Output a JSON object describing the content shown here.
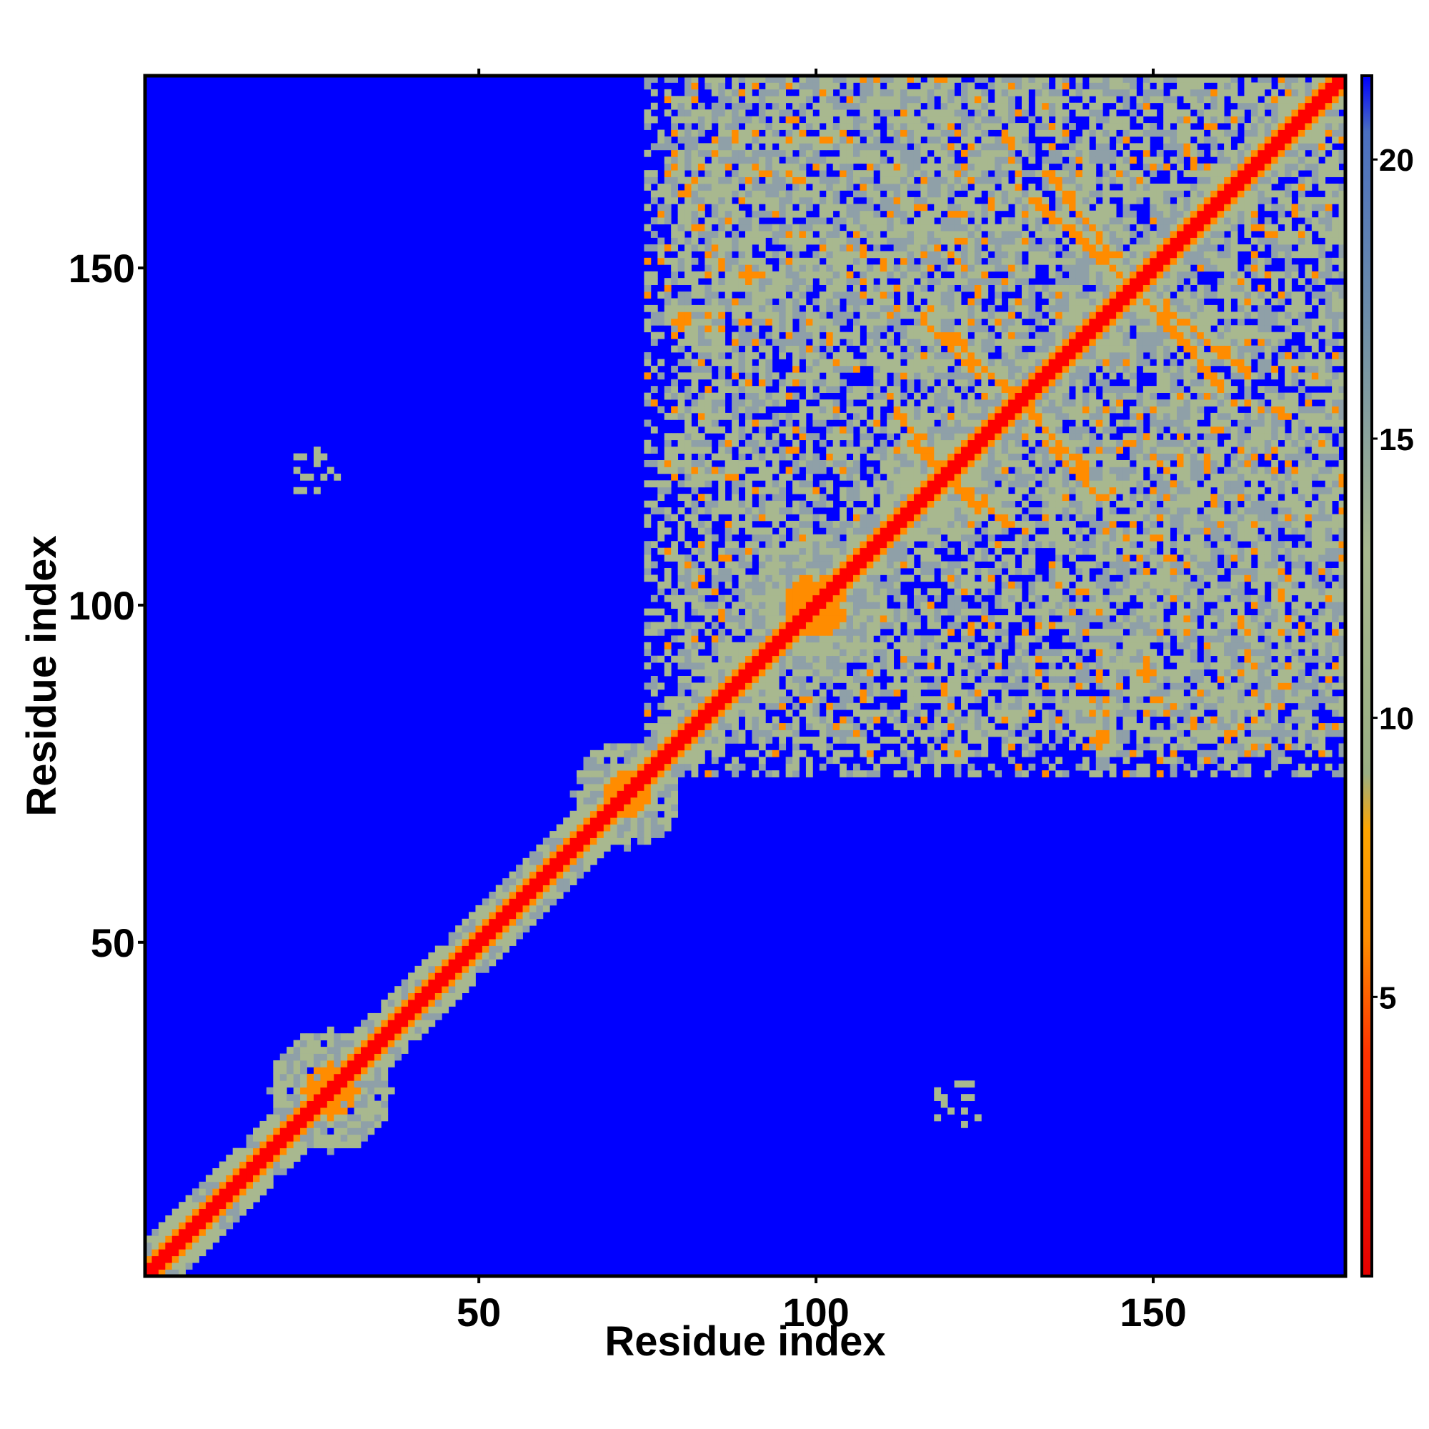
{
  "chart_data": {
    "type": "heatmap",
    "title": "",
    "xlabel": "Residue index",
    "ylabel": "Residue index",
    "xlim": [
      1,
      178
    ],
    "ylim": [
      1,
      178
    ],
    "x_ticks": [
      50,
      100,
      150
    ],
    "y_ticks": [
      50,
      100,
      150
    ],
    "x_tick_labels": [
      "50",
      "100",
      "150"
    ],
    "y_tick_labels": [
      "50",
      "100",
      "150"
    ],
    "grid": false,
    "legend": "colorbar-right",
    "colorbar": {
      "min": 0,
      "max": 21.5,
      "ticks": [
        5,
        10,
        15,
        20
      ],
      "tick_labels": [
        "5",
        "10",
        "15",
        "20"
      ],
      "stops": [
        {
          "value": 0,
          "color": "#e60000"
        },
        {
          "value": 4,
          "color": "#ff3300"
        },
        {
          "value": 6,
          "color": "#ff8c00"
        },
        {
          "value": 8,
          "color": "#ffa500"
        },
        {
          "value": 9,
          "color": "#9aaf84"
        },
        {
          "value": 13,
          "color": "#a8b88f"
        },
        {
          "value": 17,
          "color": "#6f8fa8"
        },
        {
          "value": 20.5,
          "color": "#4a6fc0"
        },
        {
          "value": 21.5,
          "color": "#0000ff"
        }
      ]
    },
    "background_value_color": "#0000ff",
    "cell_classes": {
      "diagonal": "#ff0000",
      "strong": "#ff8c00",
      "medium": "#a8b88f",
      "weak": "#8fa0a8",
      "none": "#0000ff"
    },
    "features": [
      {
        "kind": "diagonal",
        "from": 1,
        "to": 178,
        "core_halfwidth": 1,
        "halo_halfwidth": 5
      },
      {
        "kind": "blob",
        "center": [
          28,
          28
        ],
        "radius": 9,
        "strength": "strong"
      },
      {
        "kind": "blob",
        "center": [
          72,
          72
        ],
        "radius": 8,
        "strength": "strong"
      },
      {
        "kind": "blob",
        "center": [
          100,
          100
        ],
        "radius": 10,
        "strength": "strong"
      },
      {
        "kind": "antidiagonal",
        "from": [
          112,
          128
        ],
        "to": [
          124,
          114
        ],
        "strength": "strong"
      },
      {
        "kind": "antidiagonal",
        "from": [
          120,
          140
        ],
        "to": [
          130,
          130
        ],
        "strength": "strong"
      },
      {
        "kind": "antidiagonal",
        "from": [
          134,
          124
        ],
        "to": [
          142,
          116
        ],
        "strength": "strong"
      },
      {
        "kind": "antidiagonal",
        "from": [
          134,
          164
        ],
        "to": [
          144,
          152
        ],
        "strength": "strong"
      },
      {
        "kind": "antidiagonal",
        "from": [
          148,
          146
        ],
        "to": [
          160,
          132
        ],
        "strength": "strong"
      },
      {
        "kind": "region",
        "x": [
          75,
          178
        ],
        "y": [
          80,
          178
        ],
        "density": 0.45
      },
      {
        "kind": "region",
        "x": [
          138,
          178
        ],
        "y": [
          78,
          130
        ],
        "density": 0.35
      },
      {
        "kind": "blob",
        "center": [
          80,
          142
        ],
        "radius": 3,
        "strength": "strong"
      },
      {
        "kind": "blob",
        "center": [
          90,
          149
        ],
        "radius": 3,
        "strength": "strong"
      },
      {
        "kind": "blob",
        "center": [
          149,
          92
        ],
        "radius": 2,
        "strength": "strong"
      },
      {
        "kind": "blob",
        "center": [
          143,
          81
        ],
        "radius": 2,
        "strength": "strong"
      },
      {
        "kind": "speck",
        "center": [
          26,
          120
        ],
        "radius": 3
      },
      {
        "kind": "speck",
        "center": [
          121,
          26
        ],
        "radius": 3
      },
      {
        "kind": "speck",
        "center": [
          80,
          121
        ],
        "radius": 3
      },
      {
        "kind": "speck",
        "center": [
          120,
          80
        ],
        "radius": 3
      }
    ]
  }
}
